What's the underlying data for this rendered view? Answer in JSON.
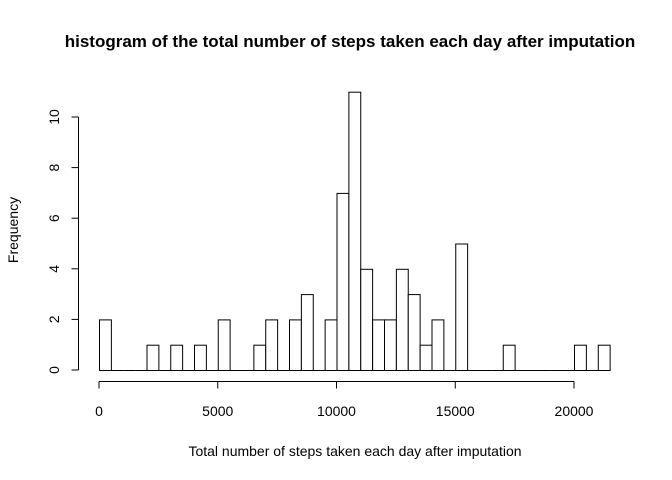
{
  "chart_data": {
    "type": "bar",
    "title": "histogram of the total number of steps taken each day after imputation",
    "xlabel": "Total number of steps taken each day after imputation",
    "ylabel": "Frequency",
    "bin_width": 500,
    "x_start": 0,
    "values": [
      2,
      0,
      0,
      0,
      1,
      0,
      1,
      0,
      1,
      0,
      2,
      0,
      0,
      1,
      2,
      0,
      2,
      3,
      0,
      2,
      7,
      11,
      4,
      2,
      2,
      4,
      3,
      1,
      2,
      0,
      5,
      0,
      0,
      0,
      1,
      0,
      0,
      0,
      0,
      0,
      1,
      0,
      1
    ],
    "xlim": [
      0,
      21500
    ],
    "ylim": [
      0,
      11
    ],
    "x_ticks": [
      0,
      5000,
      10000,
      15000,
      20000
    ],
    "y_ticks": [
      0,
      2,
      4,
      6,
      8,
      10
    ],
    "grid": false
  }
}
